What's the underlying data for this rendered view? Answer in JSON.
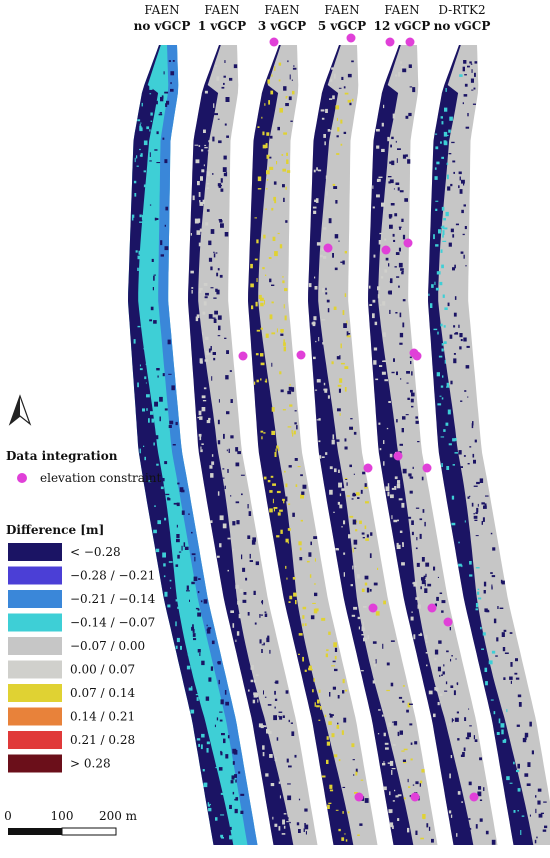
{
  "panels": [
    {
      "title": [
        "FAEN",
        "no vGCP"
      ]
    },
    {
      "title": [
        "FAEN",
        "1 vGCP"
      ]
    },
    {
      "title": [
        "FAEN",
        "3 vGCP"
      ]
    },
    {
      "title": [
        "FAEN",
        "5 vGCP"
      ]
    },
    {
      "title": [
        "FAEN",
        "12 vGCP"
      ]
    },
    {
      "title": [
        "D-RTK2",
        "no vGCP"
      ]
    }
  ],
  "legend": {
    "integration_title": "Data integration",
    "constraint_label": "elevation constraint",
    "constraint_color": "#e040d8",
    "difference_title": "Difference [m]",
    "classes": [
      {
        "label": "< −0.28",
        "color": "#1b1464"
      },
      {
        "label": "−0.28 / −0.21",
        "color": "#4b3fd6"
      },
      {
        "label": "−0.21 / −0.14",
        "color": "#3a87d9"
      },
      {
        "label": "−0.14 / −0.07",
        "color": "#3ecfd6"
      },
      {
        "label": "−0.07 / 0.00",
        "color": "#c6c6c6"
      },
      {
        "label": "0.00 / 0.07",
        "color": "#d0d0cc"
      },
      {
        "label": "0.07 / 0.14",
        "color": "#e0d233"
      },
      {
        "label": "0.14 / 0.21",
        "color": "#e8823a"
      },
      {
        "label": "0.21 / 0.28",
        "color": "#e03a3a"
      },
      {
        "label": "> 0.28",
        "color": "#6b0f1a"
      }
    ]
  },
  "scale_bar": {
    "labels": [
      "0",
      "100",
      "200 m"
    ]
  }
}
